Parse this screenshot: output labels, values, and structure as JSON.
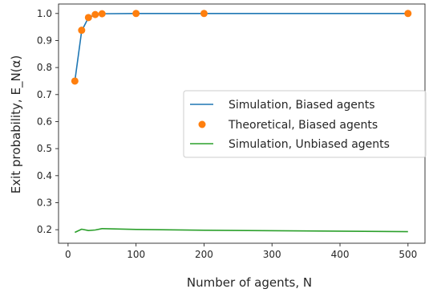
{
  "chart_data": {
    "type": "line",
    "xlabel": "Number of agents, N",
    "ylabel": "Exit probability, E_N(α)",
    "xlim": [
      -14,
      525
    ],
    "ylim": [
      0.15,
      1.035
    ],
    "xticks": [
      0,
      100,
      200,
      300,
      400,
      500
    ],
    "yticks": [
      0.2,
      0.3,
      0.4,
      0.5,
      0.6,
      0.7,
      0.8,
      0.9,
      1.0
    ],
    "xtick_labels": [
      "0",
      "100",
      "200",
      "300",
      "400",
      "500"
    ],
    "ytick_labels": [
      "0.2",
      "0.3",
      "0.4",
      "0.5",
      "0.6",
      "0.7",
      "0.8",
      "0.9",
      "1.0"
    ],
    "grid": false,
    "legend_position": "center-right",
    "series": [
      {
        "name": "Simulation, Biased agents",
        "style": "line",
        "color": "#1f77b4",
        "x": [
          10,
          20,
          30,
          40,
          50,
          100,
          200,
          500
        ],
        "y": [
          0.75,
          0.935,
          0.985,
          0.995,
          0.999,
          1.0,
          1.0,
          1.0
        ]
      },
      {
        "name": "Theoretical, Biased agents",
        "style": "markers",
        "color": "#ff7f0e",
        "x": [
          10,
          20,
          30,
          40,
          50,
          100,
          200,
          500
        ],
        "y": [
          0.75,
          0.938,
          0.985,
          0.996,
          0.999,
          1.0,
          1.0,
          1.0
        ]
      },
      {
        "name": "Simulation, Unbiased agents",
        "style": "line",
        "color": "#2ca02c",
        "x": [
          10,
          20,
          30,
          40,
          50,
          100,
          200,
          500
        ],
        "y": [
          0.19,
          0.202,
          0.197,
          0.199,
          0.204,
          0.201,
          0.198,
          0.193
        ]
      }
    ]
  }
}
